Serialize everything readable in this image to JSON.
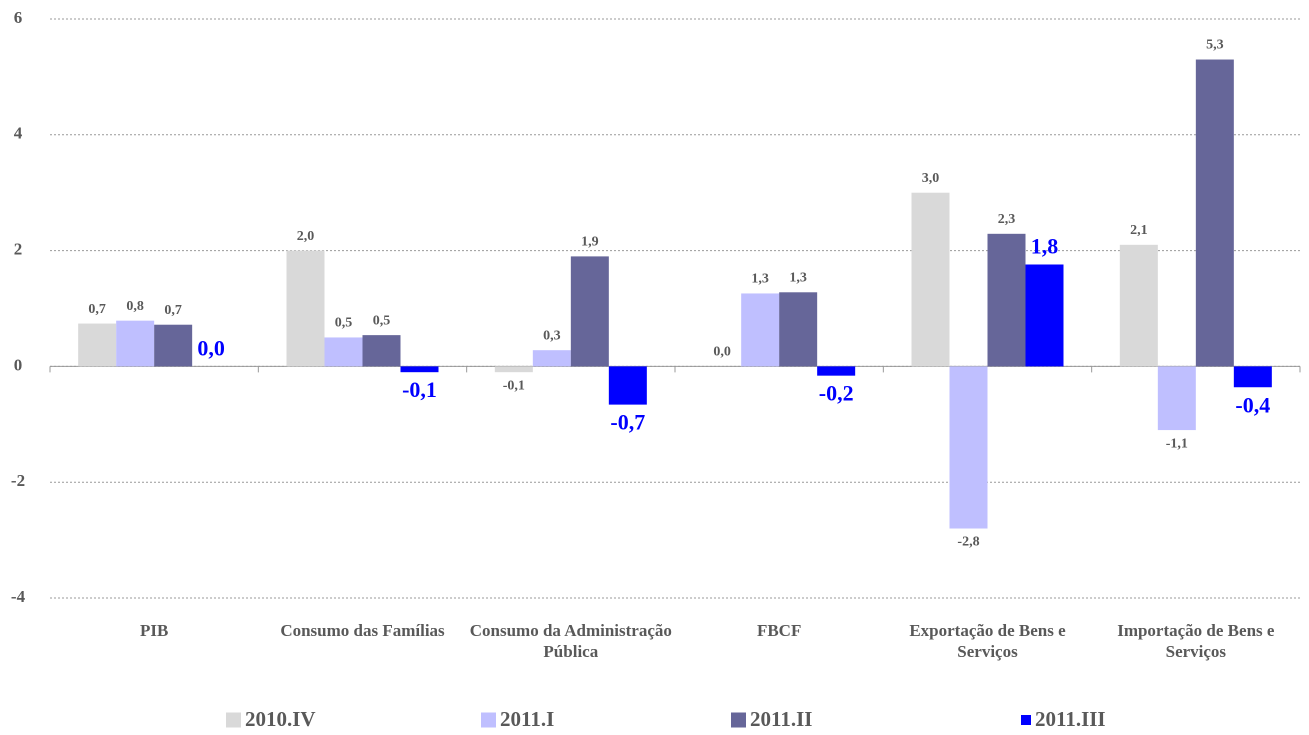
{
  "chart_data": {
    "type": "bar",
    "categories": [
      "PIB",
      "Consumo das Famílias",
      "Consumo da Administração Pública",
      "FBCF",
      "Exportação de Bens e Serviços",
      "Importação de Bens e Serviços"
    ],
    "series": [
      {
        "name": "2010.IV",
        "color": "#d9d9d9",
        "values": [
          0.74,
          2.0,
          -0.1,
          0.0,
          3.0,
          2.1
        ],
        "value_labels": [
          "0,7",
          "2,0",
          "-0,1",
          "0,0",
          "3,0",
          "2,1"
        ]
      },
      {
        "name": "2011.I",
        "color": "#bfbfff",
        "values": [
          0.79,
          0.5,
          0.28,
          1.26,
          -2.8,
          -1.1
        ],
        "value_labels": [
          "0,8",
          "0,5",
          "0,3",
          "1,3",
          "-2,8",
          "-1,1"
        ]
      },
      {
        "name": "2011.II",
        "color": "#666699",
        "values": [
          0.72,
          0.54,
          1.9,
          1.28,
          2.29,
          5.3
        ],
        "value_labels": [
          "0,7",
          "0,5",
          "1,9",
          "1,3",
          "2,3",
          "5,3"
        ]
      },
      {
        "name": "2011.III",
        "color": "#0000ff",
        "values": [
          0.0,
          -0.1,
          -0.66,
          -0.16,
          1.76,
          -0.36
        ],
        "value_labels": [
          "0,0",
          "-0,1",
          "-0,7",
          "-0,2",
          "1,8",
          "-0,4"
        ]
      }
    ],
    "ylim": [
      -4,
      6
    ],
    "yticks": [
      -4,
      -2,
      0,
      2,
      4,
      6
    ],
    "grid": true,
    "legend": "bottom"
  }
}
